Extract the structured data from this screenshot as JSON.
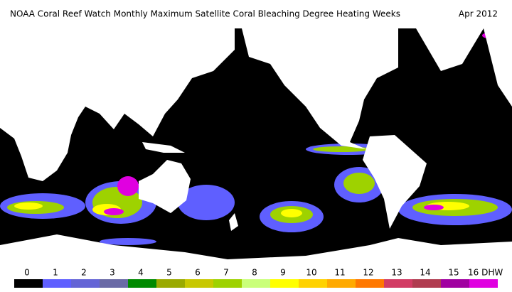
{
  "header": {
    "title": "NOAA Coral Reef Watch Monthly Maximum Satellite Coral Bleaching Degree Heating Weeks",
    "date": "Apr 2012"
  },
  "legend": {
    "labels": [
      "0",
      "1",
      "2",
      "3",
      "4",
      "5",
      "6",
      "7",
      "8",
      "9",
      "10",
      "11",
      "12",
      "13",
      "14",
      "15",
      "16 DHW"
    ],
    "colors": [
      "#000000",
      "#5f5fff",
      "#6464d6",
      "#6a6aa6",
      "#008a00",
      "#9aaa00",
      "#c8c800",
      "#9ed200",
      "#caff7a",
      "#ffff00",
      "#ffd200",
      "#ffaa00",
      "#ff7800",
      "#d23c64",
      "#b03c50",
      "#a000a0",
      "#e000e0"
    ]
  }
}
